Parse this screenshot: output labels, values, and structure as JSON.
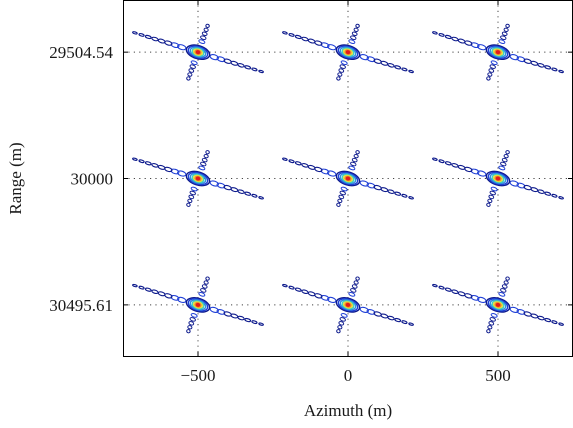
{
  "chart_data": {
    "type": "scatter",
    "title": "",
    "xlabel": "Azimuth (m)",
    "ylabel": "Range (m)",
    "xlim": [
      -750,
      750
    ],
    "ylim": [
      29300,
      30700
    ],
    "y_axis_inverted": true,
    "grid": "dotted",
    "xticks": [
      -500,
      0,
      500
    ],
    "xtick_labels": [
      "−500",
      "0",
      "500"
    ],
    "yticks": [
      29504.54,
      30000,
      30495.61
    ],
    "ytick_labels": [
      "29504.54",
      "30000",
      "30495.61"
    ],
    "description_style": "contour point-target responses (2D sinc-like cross shapes)",
    "points": [
      {
        "x": -500,
        "y": 29504.54
      },
      {
        "x": 0,
        "y": 29504.54
      },
      {
        "x": 500,
        "y": 29504.54
      },
      {
        "x": -500,
        "y": 30000
      },
      {
        "x": 0,
        "y": 30000
      },
      {
        "x": 500,
        "y": 30000
      },
      {
        "x": -500,
        "y": 30495.61
      },
      {
        "x": 0,
        "y": 30495.61
      },
      {
        "x": 500,
        "y": 30495.61
      }
    ],
    "colormap": [
      "#0d1a8c",
      "#1f3fd6",
      "#2d8fe0",
      "#3fd0c0",
      "#e8e23a",
      "#f08a2a",
      "#e41a1a"
    ]
  }
}
